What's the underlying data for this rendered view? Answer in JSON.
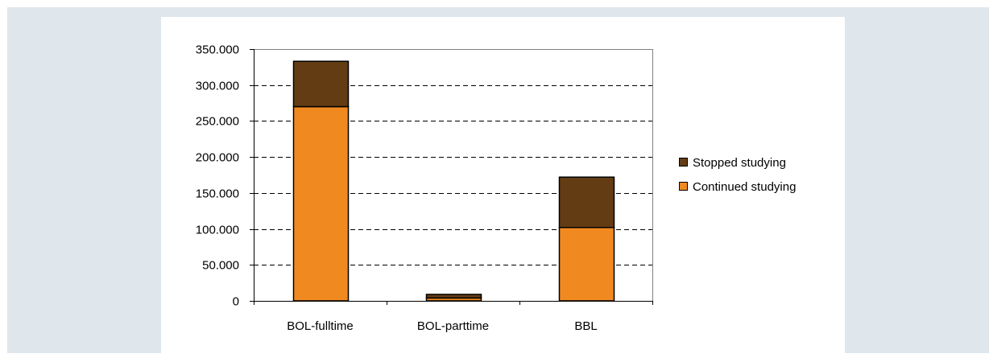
{
  "chart_data": {
    "type": "bar",
    "stacked": true,
    "categories": [
      "BOL-fulltime",
      "BOL-parttime",
      "BBL"
    ],
    "series": [
      {
        "name": "Continued studying",
        "color": "#f08a20",
        "values": [
          270000,
          4000,
          102000
        ]
      },
      {
        "name": "Stopped studying",
        "color": "#643c14",
        "values": [
          63000,
          5000,
          70000
        ]
      }
    ],
    "title": "",
    "xlabel": "",
    "ylabel": "",
    "ylim": [
      0,
      350000
    ],
    "yticks": [
      0,
      50000,
      100000,
      150000,
      200000,
      250000,
      300000,
      350000
    ],
    "ytick_labels": [
      "0",
      "50.000",
      "100.000",
      "150.000",
      "200.000",
      "250.000",
      "300.000",
      "350.000"
    ],
    "grid": "horizontal-dashed",
    "legend_position": "right",
    "legend_order": [
      "Stopped studying",
      "Continued studying"
    ]
  }
}
